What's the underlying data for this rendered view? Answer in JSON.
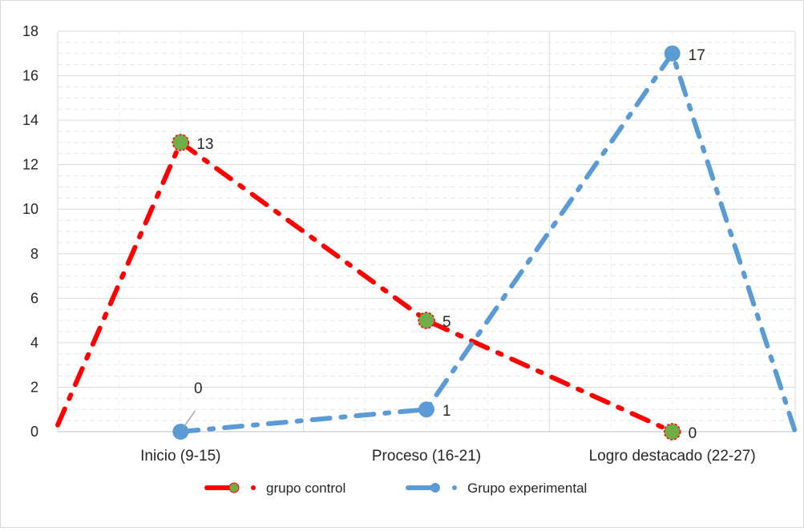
{
  "chart_data": {
    "type": "line",
    "title": "",
    "xlabel": "",
    "ylabel": "",
    "categories": [
      "Inicio (9-15)",
      "Proceso (16-21)",
      "Logro destacado  (22-27)"
    ],
    "ylim": [
      0,
      18
    ],
    "yticks": [
      0,
      2,
      4,
      6,
      8,
      10,
      12,
      14,
      16,
      18
    ],
    "grid": true,
    "legend_position": "bottom",
    "series": [
      {
        "name": "grupo control",
        "values": [
          13,
          5,
          0
        ],
        "start_value": 0.3,
        "data_labels": [
          "13",
          "5",
          "0"
        ],
        "line_color": "#ff0000",
        "marker_color": "#70ad47",
        "line_style": "dash-dot"
      },
      {
        "name": "Grupo experimental",
        "values": [
          0,
          1,
          17
        ],
        "end_value": 0,
        "data_labels": [
          "0",
          "1",
          "17"
        ],
        "line_color": "#5b9bd5",
        "marker_color": "#5b9bd5",
        "line_style": "dash-dot"
      }
    ]
  }
}
